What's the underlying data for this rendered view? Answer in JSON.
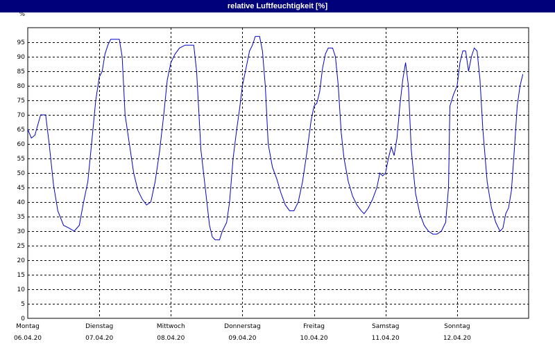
{
  "chart_data": {
    "type": "line",
    "title": "relative Luftfeuchtigkeit [%]",
    "ylabel": "%",
    "ylim": [
      0,
      100
    ],
    "yticks": [
      0,
      5,
      10,
      15,
      20,
      25,
      30,
      35,
      40,
      45,
      50,
      55,
      60,
      65,
      70,
      75,
      80,
      85,
      90,
      95
    ],
    "grid": true,
    "days": [
      {
        "name": "Montag",
        "date": "06.04.20"
      },
      {
        "name": "Dienstag",
        "date": "07.04.20"
      },
      {
        "name": "Mittwoch",
        "date": "08.04.20"
      },
      {
        "name": "Donnerstag",
        "date": "09.04.20"
      },
      {
        "name": "Freitag",
        "date": "10.04.20"
      },
      {
        "name": "Samstag",
        "date": "11.04.20"
      },
      {
        "name": "Sonntag",
        "date": "12.04.20"
      }
    ],
    "color": "#0000cc",
    "series": [
      {
        "points": [
          [
            0.0,
            65
          ],
          [
            0.05,
            62
          ],
          [
            0.1,
            63
          ],
          [
            0.18,
            70
          ],
          [
            0.25,
            70
          ],
          [
            0.3,
            60
          ],
          [
            0.36,
            46
          ],
          [
            0.42,
            37
          ],
          [
            0.5,
            32
          ],
          [
            0.58,
            31
          ],
          [
            0.65,
            30
          ],
          [
            0.72,
            32
          ],
          [
            0.78,
            40
          ],
          [
            0.84,
            47
          ],
          [
            0.9,
            62
          ],
          [
            0.95,
            75
          ],
          [
            1.0,
            83
          ],
          [
            1.04,
            85
          ],
          [
            1.08,
            91
          ],
          [
            1.12,
            94
          ],
          [
            1.16,
            96
          ],
          [
            1.22,
            96
          ],
          [
            1.28,
            96
          ],
          [
            1.32,
            90
          ],
          [
            1.36,
            70
          ],
          [
            1.42,
            60
          ],
          [
            1.48,
            50
          ],
          [
            1.54,
            44
          ],
          [
            1.6,
            41
          ],
          [
            1.66,
            39
          ],
          [
            1.72,
            40
          ],
          [
            1.78,
            47
          ],
          [
            1.84,
            57
          ],
          [
            1.9,
            70
          ],
          [
            1.95,
            82
          ],
          [
            2.0,
            88
          ],
          [
            2.06,
            91
          ],
          [
            2.12,
            93
          ],
          [
            2.2,
            94
          ],
          [
            2.26,
            94
          ],
          [
            2.32,
            94
          ],
          [
            2.36,
            85
          ],
          [
            2.42,
            58
          ],
          [
            2.48,
            45
          ],
          [
            2.54,
            32
          ],
          [
            2.58,
            28
          ],
          [
            2.62,
            27
          ],
          [
            2.68,
            27
          ],
          [
            2.72,
            30
          ],
          [
            2.78,
            33
          ],
          [
            2.82,
            40
          ],
          [
            2.87,
            55
          ],
          [
            2.92,
            65
          ],
          [
            2.96,
            72
          ],
          [
            3.0,
            80
          ],
          [
            3.05,
            86
          ],
          [
            3.1,
            92
          ],
          [
            3.14,
            94
          ],
          [
            3.18,
            97
          ],
          [
            3.24,
            97
          ],
          [
            3.28,
            92
          ],
          [
            3.32,
            80
          ],
          [
            3.36,
            60
          ],
          [
            3.42,
            52
          ],
          [
            3.48,
            48
          ],
          [
            3.54,
            43
          ],
          [
            3.6,
            39
          ],
          [
            3.66,
            37
          ],
          [
            3.72,
            37
          ],
          [
            3.78,
            40
          ],
          [
            3.84,
            47
          ],
          [
            3.9,
            57
          ],
          [
            3.96,
            68
          ],
          [
            4.0,
            73
          ],
          [
            4.04,
            74
          ],
          [
            4.08,
            78
          ],
          [
            4.12,
            86
          ],
          [
            4.16,
            91
          ],
          [
            4.2,
            93
          ],
          [
            4.26,
            93
          ],
          [
            4.3,
            90
          ],
          [
            4.34,
            80
          ],
          [
            4.38,
            64
          ],
          [
            4.42,
            55
          ],
          [
            4.48,
            47
          ],
          [
            4.54,
            42
          ],
          [
            4.6,
            39
          ],
          [
            4.66,
            37
          ],
          [
            4.7,
            36
          ],
          [
            4.76,
            38
          ],
          [
            4.82,
            41
          ],
          [
            4.88,
            45
          ],
          [
            4.92,
            50
          ],
          [
            4.96,
            49
          ],
          [
            5.0,
            50
          ],
          [
            5.04,
            55
          ],
          [
            5.08,
            59
          ],
          [
            5.12,
            56
          ],
          [
            5.16,
            62
          ],
          [
            5.2,
            73
          ],
          [
            5.24,
            82
          ],
          [
            5.28,
            88
          ],
          [
            5.32,
            80
          ],
          [
            5.36,
            58
          ],
          [
            5.42,
            43
          ],
          [
            5.48,
            36
          ],
          [
            5.54,
            32
          ],
          [
            5.6,
            30
          ],
          [
            5.66,
            29
          ],
          [
            5.72,
            29
          ],
          [
            5.78,
            30
          ],
          [
            5.84,
            33
          ],
          [
            5.88,
            45
          ],
          [
            5.9,
            73
          ],
          [
            5.95,
            77
          ],
          [
            6.0,
            80
          ],
          [
            6.04,
            88
          ],
          [
            6.08,
            92
          ],
          [
            6.12,
            92
          ],
          [
            6.16,
            85
          ],
          [
            6.2,
            90
          ],
          [
            6.24,
            93
          ],
          [
            6.28,
            92
          ],
          [
            6.32,
            82
          ],
          [
            6.36,
            65
          ],
          [
            6.42,
            47
          ],
          [
            6.48,
            38
          ],
          [
            6.54,
            33
          ],
          [
            6.6,
            30
          ],
          [
            6.64,
            31
          ],
          [
            6.68,
            36
          ],
          [
            6.72,
            38
          ],
          [
            6.76,
            44
          ],
          [
            6.8,
            58
          ],
          [
            6.84,
            73
          ],
          [
            6.88,
            80
          ],
          [
            6.92,
            84
          ]
        ]
      }
    ]
  }
}
